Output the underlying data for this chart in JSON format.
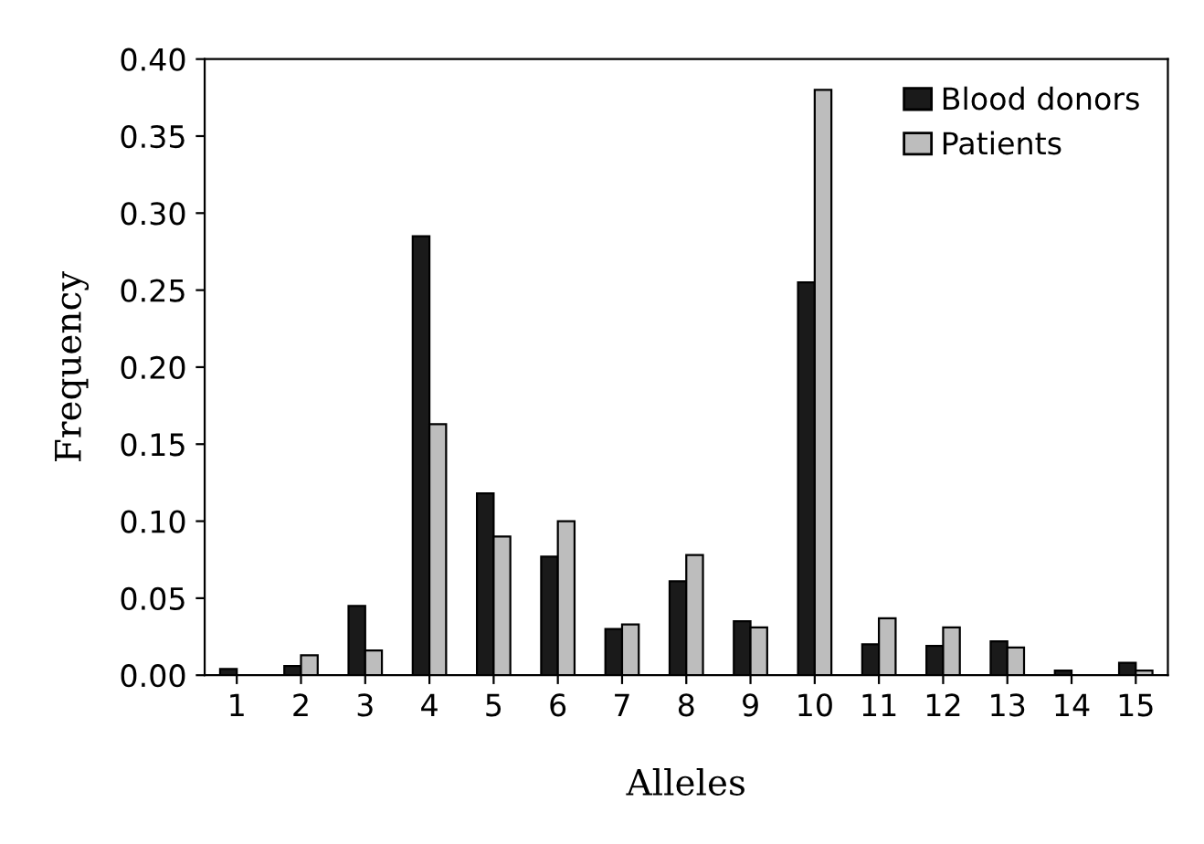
{
  "chart_data": {
    "type": "bar",
    "xlabel": "Alleles",
    "ylabel": "Frequency",
    "categories": [
      "1",
      "2",
      "3",
      "4",
      "5",
      "6",
      "7",
      "8",
      "9",
      "10",
      "11",
      "12",
      "13",
      "14",
      "15"
    ],
    "series": [
      {
        "name": "Blood donors",
        "color": "#1a1a1a",
        "values": [
          0.004,
          0.006,
          0.045,
          0.285,
          0.118,
          0.077,
          0.03,
          0.061,
          0.035,
          0.255,
          0.02,
          0.019,
          0.022,
          0.003,
          0.008
        ]
      },
      {
        "name": "Patients",
        "color": "#bdbdbd",
        "values": [
          null,
          0.013,
          0.016,
          0.163,
          0.09,
          0.1,
          0.033,
          0.078,
          0.031,
          0.38,
          0.037,
          0.031,
          0.018,
          null,
          0.003
        ]
      }
    ],
    "ylim": [
      0,
      0.4
    ],
    "yticks": [
      {
        "value": 0,
        "label": "0.00"
      },
      {
        "value": 0.05,
        "label": "0.05"
      },
      {
        "value": 0.1,
        "label": "0.10"
      },
      {
        "value": 0.15,
        "label": "0.15"
      },
      {
        "value": 0.2,
        "label": "0.20"
      },
      {
        "value": 0.25,
        "label": "0.25"
      },
      {
        "value": 0.3,
        "label": "0.30"
      },
      {
        "value": 0.35,
        "label": "0.35"
      },
      {
        "value": 0.4,
        "label": "0.40"
      }
    ],
    "grid": false,
    "legend": "top right"
  }
}
